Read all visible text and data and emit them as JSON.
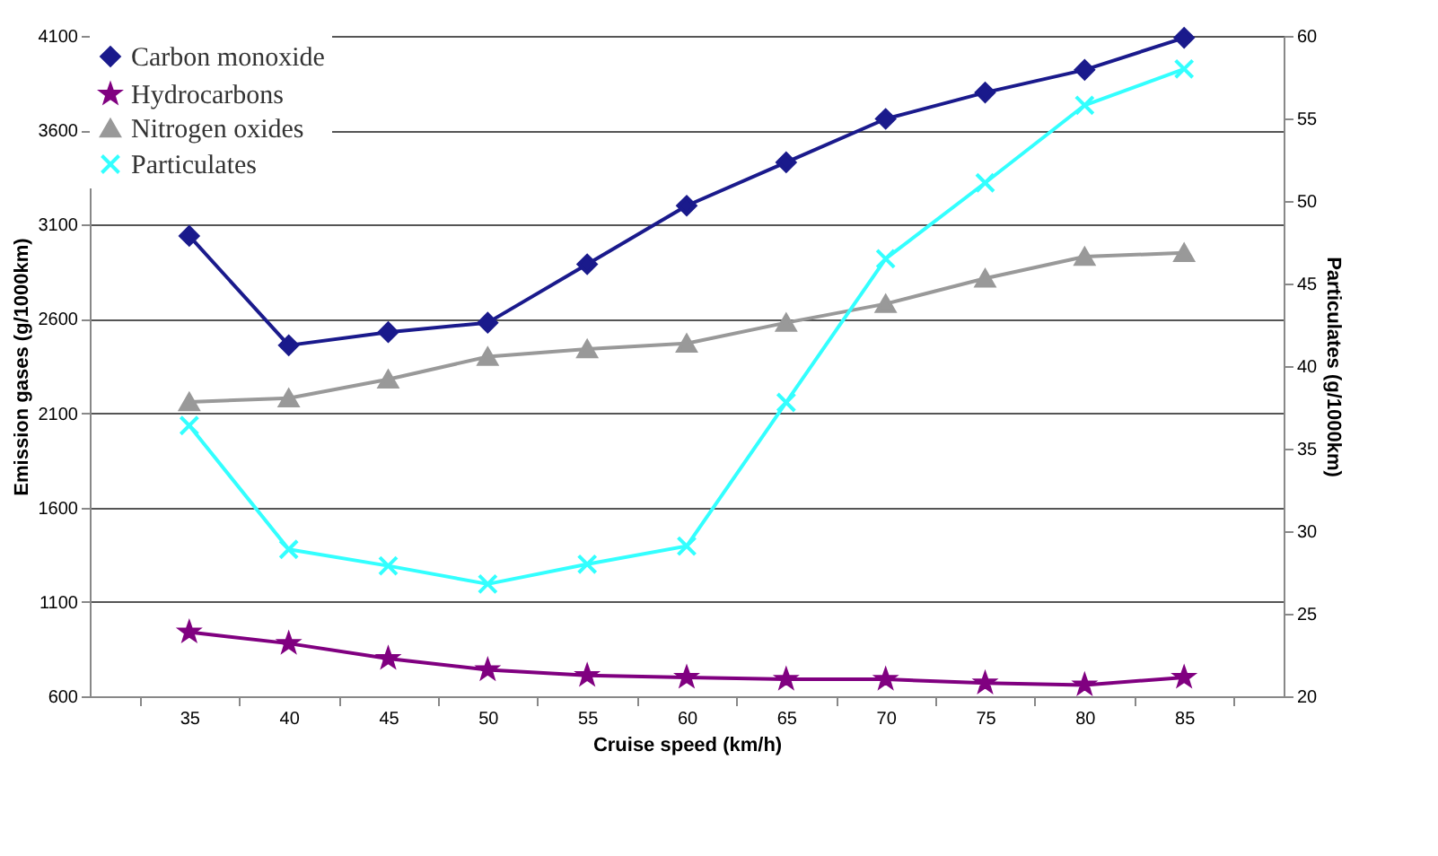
{
  "chart_data": {
    "type": "line",
    "xlabel": "Cruise speed (km/h)",
    "ylabel": "Emission gases (g/1000km)",
    "y2label": "Particulates (g/1000km)",
    "categories": [
      "35",
      "40",
      "45",
      "50",
      "55",
      "60",
      "65",
      "70",
      "75",
      "80",
      "85"
    ],
    "series": [
      {
        "name": "Carbon monoxide",
        "color": "#1a1a8c",
        "marker": "diamond",
        "values": [
          3040,
          2460,
          2530,
          2580,
          2890,
          3200,
          3430,
          3660,
          3800,
          3920,
          4090
        ]
      },
      {
        "name": "Hydrocarbons",
        "color": "#800080",
        "marker": "star",
        "values": [
          940,
          880,
          800,
          740,
          710,
          700,
          690,
          690,
          670,
          660,
          700
        ]
      },
      {
        "name": "Nitrogen oxides",
        "color": "#999999",
        "marker": "triangle",
        "values": [
          2160,
          2180,
          2280,
          2400,
          2440,
          2470,
          2580,
          2680,
          2815,
          2930,
          2950
        ]
      },
      {
        "name": "Particulates",
        "color": "#33ffff",
        "marker": "cross",
        "axis": "y2",
        "values": [
          36.4,
          28.9,
          27.9,
          26.8,
          28.0,
          29.1,
          37.8,
          46.5,
          51.1,
          55.8,
          58.0
        ]
      }
    ],
    "ylim": [
      600,
      4100
    ],
    "yticks": [
      600,
      1100,
      1600,
      2100,
      2600,
      3100,
      3600,
      4100
    ],
    "y2lim": [
      20,
      60
    ],
    "y2ticks": [
      20,
      25,
      30,
      35,
      40,
      45,
      50,
      55,
      60
    ],
    "grid": "y",
    "legend": "top left"
  }
}
